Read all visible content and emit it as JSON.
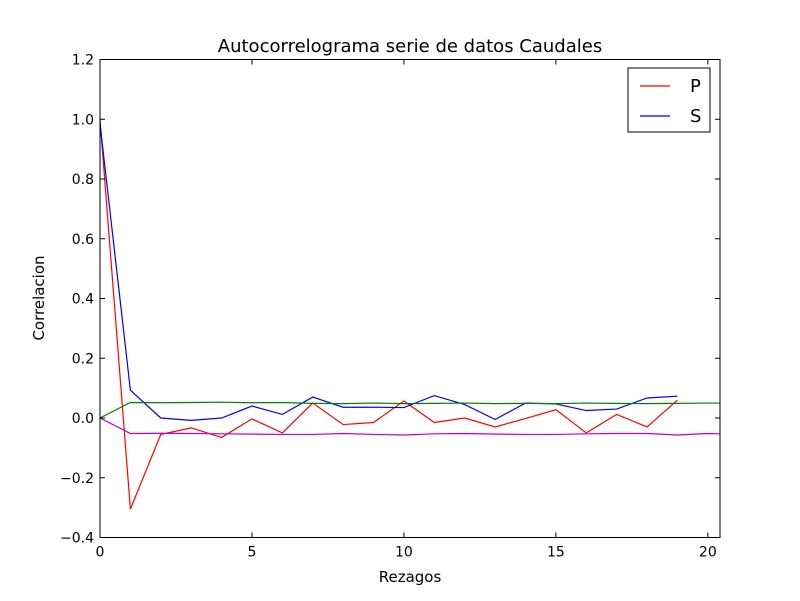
{
  "chart_data": {
    "type": "line",
    "title": "Autocorrelograma serie de datos Caudales",
    "xlabel": "Rezagos",
    "ylabel": "Correlacion",
    "xlim": [
      0,
      20.4
    ],
    "ylim": [
      -0.4,
      1.2
    ],
    "x_ticks": [
      0,
      5,
      10,
      15,
      20
    ],
    "x_tick_labels": [
      "0",
      "5",
      "10",
      "15",
      "20"
    ],
    "y_ticks": [
      -0.4,
      -0.2,
      0.0,
      0.2,
      0.4,
      0.6,
      0.8,
      1.0,
      1.2
    ],
    "y_tick_labels": [
      "−0.4",
      "−0.2",
      "0.0",
      "0.2",
      "0.4",
      "0.6",
      "0.8",
      "1.0",
      "1.2"
    ],
    "grid": false,
    "legend_position": "top-right",
    "series": [
      {
        "name": "P",
        "color": "#ff0000",
        "x": [
          0,
          1,
          2,
          3,
          4,
          5,
          6,
          7,
          8,
          9,
          10,
          11,
          12,
          13,
          14,
          15,
          16,
          17,
          18,
          19
        ],
        "y": [
          1.0,
          -0.305,
          -0.055,
          -0.033,
          -0.065,
          -0.003,
          -0.05,
          0.05,
          -0.022,
          -0.015,
          0.057,
          -0.015,
          0.0,
          -0.03,
          -0.002,
          0.028,
          -0.05,
          0.012,
          -0.03,
          0.06
        ]
      },
      {
        "name": "S",
        "color": "#0000ff",
        "x": [
          0,
          1,
          2,
          3,
          4,
          5,
          6,
          7,
          8,
          9,
          10,
          11,
          12,
          13,
          14,
          15,
          16,
          17,
          18,
          19
        ],
        "y": [
          0.985,
          0.093,
          0.0,
          -0.008,
          0.0,
          0.04,
          0.012,
          0.07,
          0.036,
          0.036,
          0.035,
          0.075,
          0.045,
          -0.005,
          0.05,
          0.047,
          0.025,
          0.03,
          0.067,
          0.073
        ]
      },
      {
        "color": "#008000",
        "x": [
          0,
          1,
          2,
          3,
          4,
          5,
          6,
          7,
          8,
          9,
          10,
          11,
          12,
          13,
          14,
          15,
          16,
          17,
          18,
          19,
          20,
          20.4
        ],
        "y": [
          0.0,
          0.052,
          0.051,
          0.052,
          0.053,
          0.051,
          0.052,
          0.049,
          0.048,
          0.05,
          0.048,
          0.049,
          0.05,
          0.048,
          0.049,
          0.048,
          0.05,
          0.049,
          0.048,
          0.049,
          0.05,
          0.05
        ]
      },
      {
        "color": "#bf00bf",
        "x": [
          0,
          1,
          2,
          3,
          4,
          5,
          6,
          7,
          8,
          9,
          10,
          11,
          12,
          13,
          14,
          15,
          16,
          17,
          18,
          19,
          20,
          20.4
        ],
        "y": [
          0.0,
          -0.052,
          -0.051,
          -0.052,
          -0.053,
          -0.054,
          -0.055,
          -0.055,
          -0.052,
          -0.055,
          -0.057,
          -0.053,
          -0.052,
          -0.054,
          -0.055,
          -0.055,
          -0.053,
          -0.052,
          -0.052,
          -0.057,
          -0.052,
          -0.053
        ]
      }
    ]
  }
}
